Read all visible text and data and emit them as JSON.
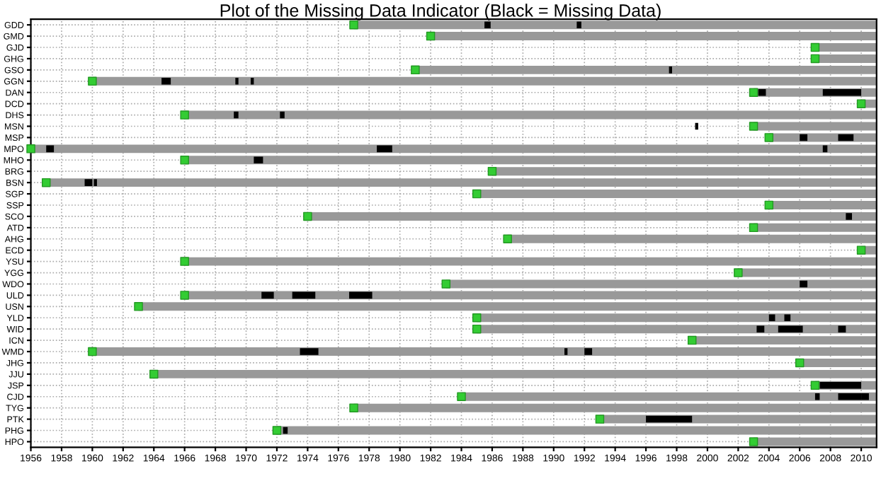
{
  "chart_data": {
    "type": "bar",
    "orientation": "horizontal",
    "title": "Plot of the Missing Data Indicator (Black = Missing Data)",
    "categories": [
      "GDD",
      "GMD",
      "GJD",
      "GHG",
      "GSO",
      "GGN",
      "DAN",
      "DCD",
      "DHS",
      "MSN",
      "MSP",
      "MPO",
      "MHO",
      "BRG",
      "BSN",
      "SGP",
      "SSP",
      "SCO",
      "ATD",
      "AHG",
      "ECD",
      "YSU",
      "YGG",
      "WDO",
      "ULD",
      "USN",
      "YLD",
      "WID",
      "ICN",
      "WMD",
      "JHG",
      "JJU",
      "JSP",
      "CJD",
      "TYG",
      "PTK",
      "PHG",
      "HPO"
    ],
    "series": [
      {
        "color": "#999999",
        "base": [
          1977,
          1982,
          2007,
          2007,
          1981,
          1960,
          2003,
          2010,
          1966,
          2003,
          2004,
          1956,
          1966,
          1986,
          1957,
          1985,
          2004,
          1974,
          2003,
          1987,
          2010,
          1966,
          2002,
          1983,
          1966,
          1963,
          1985,
          1985,
          1999,
          1960,
          2006,
          1964,
          2007,
          1984,
          1977,
          1993,
          1972,
          2003
        ],
        "values": [
          34,
          29,
          4,
          4,
          30,
          51,
          8,
          1,
          45,
          8,
          7,
          55,
          45,
          25,
          54,
          26,
          7,
          37,
          8,
          24,
          1,
          45,
          9,
          28,
          45,
          48,
          26,
          26,
          12,
          51,
          5,
          47,
          4,
          27,
          34,
          18,
          39,
          8
        ]
      },
      {
        "color": "#000000",
        "base": [
          1985.5,
          null,
          null,
          null,
          1997.5,
          1964.5,
          2003.3,
          null,
          1969.2,
          null,
          null,
          1957,
          1970.5,
          null,
          1959.5,
          null,
          null,
          2009,
          null,
          null,
          null,
          null,
          null,
          null,
          1971,
          null,
          null,
          2004.6,
          null,
          1973.5,
          null,
          null,
          2007.3,
          2008.5,
          null,
          1996,
          1972.4,
          null
        ],
        "values": [
          0.4,
          null,
          null,
          null,
          0.2,
          0.6,
          0.5,
          null,
          0.3,
          null,
          null,
          0.5,
          0.6,
          null,
          0.5,
          null,
          null,
          0.4,
          null,
          null,
          null,
          null,
          null,
          null,
          0.8,
          null,
          null,
          1.6,
          null,
          1.2,
          null,
          null,
          2.7,
          1.5,
          null,
          3,
          0.3,
          null
        ]
      },
      {
        "color": "#000000",
        "base": [
          1991.5,
          null,
          null,
          null,
          null,
          1970.3,
          2007.5,
          null,
          1972.2,
          1999.2,
          2008.5,
          1978.5,
          null,
          null,
          1960.1,
          null,
          null,
          null,
          null,
          null,
          null,
          null,
          null,
          2006,
          1973,
          null,
          2005,
          2003.2,
          null,
          1992,
          null,
          null,
          null,
          2010,
          null,
          null,
          null,
          null
        ],
        "values": [
          0.3,
          null,
          null,
          null,
          null,
          0.2,
          2.5,
          null,
          0.3,
          0.2,
          1,
          1,
          null,
          null,
          0.2,
          null,
          null,
          null,
          null,
          null,
          null,
          null,
          null,
          0.5,
          1.5,
          null,
          0.4,
          0.5,
          null,
          0.5,
          null,
          null,
          null,
          0.5,
          null,
          null,
          null,
          null
        ]
      },
      {
        "color": "#000000",
        "base": [
          null,
          null,
          null,
          null,
          null,
          1969.3,
          null,
          null,
          null,
          null,
          2006,
          2007.5,
          null,
          null,
          null,
          null,
          null,
          null,
          null,
          null,
          null,
          null,
          null,
          null,
          1976.7,
          null,
          2004,
          2008.5,
          null,
          1990.7,
          null,
          null,
          null,
          2007,
          null,
          null,
          null,
          null
        ],
        "values": [
          null,
          null,
          null,
          null,
          null,
          0.2,
          null,
          null,
          null,
          null,
          0.5,
          0.3,
          null,
          null,
          null,
          null,
          null,
          null,
          null,
          null,
          null,
          null,
          null,
          null,
          1.5,
          null,
          0.4,
          0.5,
          null,
          0.2,
          null,
          null,
          null,
          0.3,
          null,
          null,
          null,
          null
        ]
      },
      {
        "type": "scatter",
        "color": "#33cc33",
        "marker": "square",
        "values": [
          1977,
          1982,
          2007,
          2007,
          1981,
          1960,
          2003,
          2010,
          1966,
          2003,
          2004,
          1956,
          1966,
          1986,
          1957,
          1985,
          2004,
          1974,
          2003,
          1987,
          2010,
          1966,
          2002,
          1983,
          1966,
          1963,
          1985,
          1985,
          1999,
          1960,
          2006,
          1964,
          2007,
          1984,
          1977,
          1993,
          1972,
          2003
        ]
      }
    ],
    "xlim": [
      1956,
      2011
    ],
    "xticks": [
      1956,
      1958,
      1960,
      1962,
      1964,
      1966,
      1968,
      1970,
      1972,
      1974,
      1976,
      1978,
      1980,
      1982,
      1984,
      1986,
      1988,
      1990,
      1992,
      1994,
      1996,
      1998,
      2000,
      2002,
      2004,
      2006,
      2008,
      2010
    ],
    "grid": true
  }
}
